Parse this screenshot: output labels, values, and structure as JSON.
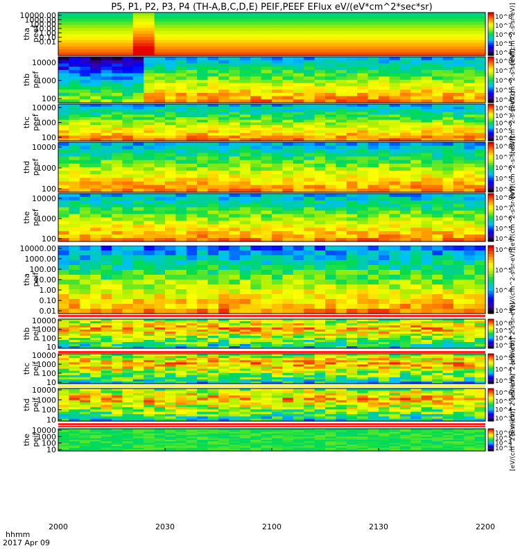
{
  "chart_data": {
    "type": "heatmap",
    "title": "P5, P1, P2, P3, P4 (TH-A,B,C,D,E) PEIF,PEEF EFlux eV/(eV*cm^2*sec*sr)",
    "x": {
      "ticks": [
        "2000",
        "2030",
        "2100",
        "2130",
        "2200"
      ],
      "label_line1": "hhmm",
      "label_line2": "2017 Apr 09"
    },
    "panels": [
      {
        "name": "tha_peef",
        "label1": "tha",
        "label2": "peef",
        "yticks": [
          "10000.00",
          "1000.00",
          "100.00",
          "10.00",
          "1.00",
          "0.10",
          "0.01"
        ],
        "cbar_ticks": [
          "10^8",
          "10^7",
          "10^6",
          "10^5",
          "10^4"
        ],
        "cbar_unit": "[eV/(cm^2-s-sr-eV)]"
      },
      {
        "name": "thb_peef",
        "label1": "thb",
        "label2": "peef",
        "yticks": [
          "10000",
          "1000",
          "100"
        ],
        "cbar_ticks": [
          "10^8",
          "10^7",
          "10^6",
          "10^5",
          "10^4"
        ],
        "cbar_unit": "[eV/(cm^2-s-sr-eV)]"
      },
      {
        "name": "thc_peef",
        "label1": "thc",
        "label2": "peef",
        "yticks": [
          "10000",
          "1000",
          "100"
        ],
        "cbar_ticks": [
          "10^8",
          "10^7",
          "10^6",
          "10^5",
          "10^4"
        ],
        "cbar_unit": "[eV/(cm^2-s-sr-eV)]"
      },
      {
        "name": "thd_peef",
        "label1": "thd",
        "label2": "peef",
        "yticks": [
          "10000",
          "1000",
          "100"
        ],
        "cbar_ticks": [
          "10^8",
          "10^7",
          "10^6",
          "10^5",
          "10^4"
        ],
        "cbar_unit": "[eV/(cm^2-s-sr-eV)]"
      },
      {
        "name": "the_peef",
        "label1": "the",
        "label2": "peef",
        "yticks": [
          "10000",
          "1000",
          "100"
        ],
        "cbar_ticks": [
          "10^8",
          "10^7",
          "10^6",
          "10^5",
          "10^4"
        ],
        "cbar_unit": "[eV/(cm^2-s-sr-eV)]"
      },
      {
        "name": "tha_peif",
        "label1": "tha",
        "label2": "peif",
        "yticks": [
          "10000.00",
          "1000.00",
          "100.00",
          "10.00",
          "1.00",
          "0.10",
          "0.01"
        ],
        "cbar_ticks": [
          "10^6",
          "10^5",
          "10^4",
          "10^3"
        ],
        "cbar_unit": "[eV/(cm^2-s-sr-eV)]"
      },
      {
        "name": "thb_peif",
        "label1": "thb",
        "label2": "peif",
        "yticks": [
          "10000",
          "1000",
          "100",
          "10"
        ],
        "cbar_ticks": [
          "10^6",
          "10^5",
          "10^4",
          "10^3"
        ],
        "cbar_unit": "[eV/(cm^2-s-sr-eV)]"
      },
      {
        "name": "thc_peif",
        "label1": "thc",
        "label2": "peif",
        "yticks": [
          "10000",
          "1000",
          "100",
          "10"
        ],
        "cbar_ticks": [
          "10^5",
          "10^4",
          "10^3"
        ],
        "cbar_unit": "[eV/(cm^2-s-sr-eV)]"
      },
      {
        "name": "thd_peif",
        "label1": "thd",
        "label2": "peif",
        "yticks": [
          "10000",
          "1000",
          "100",
          "10"
        ],
        "cbar_ticks": [
          "10^6",
          "10^5",
          "10^4",
          "10^3"
        ],
        "cbar_unit": "[eV/(cm^2-s-sr-eV)]"
      },
      {
        "name": "the_peif",
        "label1": "the",
        "label2": "peif",
        "yticks": [
          "10000",
          "1000",
          "100",
          "10"
        ],
        "cbar_ticks": [
          "10^6",
          "10^5",
          "10^4",
          "10^3"
        ],
        "cbar_unit": "[eV/(cm^2-s-sr-eV)]"
      }
    ]
  }
}
